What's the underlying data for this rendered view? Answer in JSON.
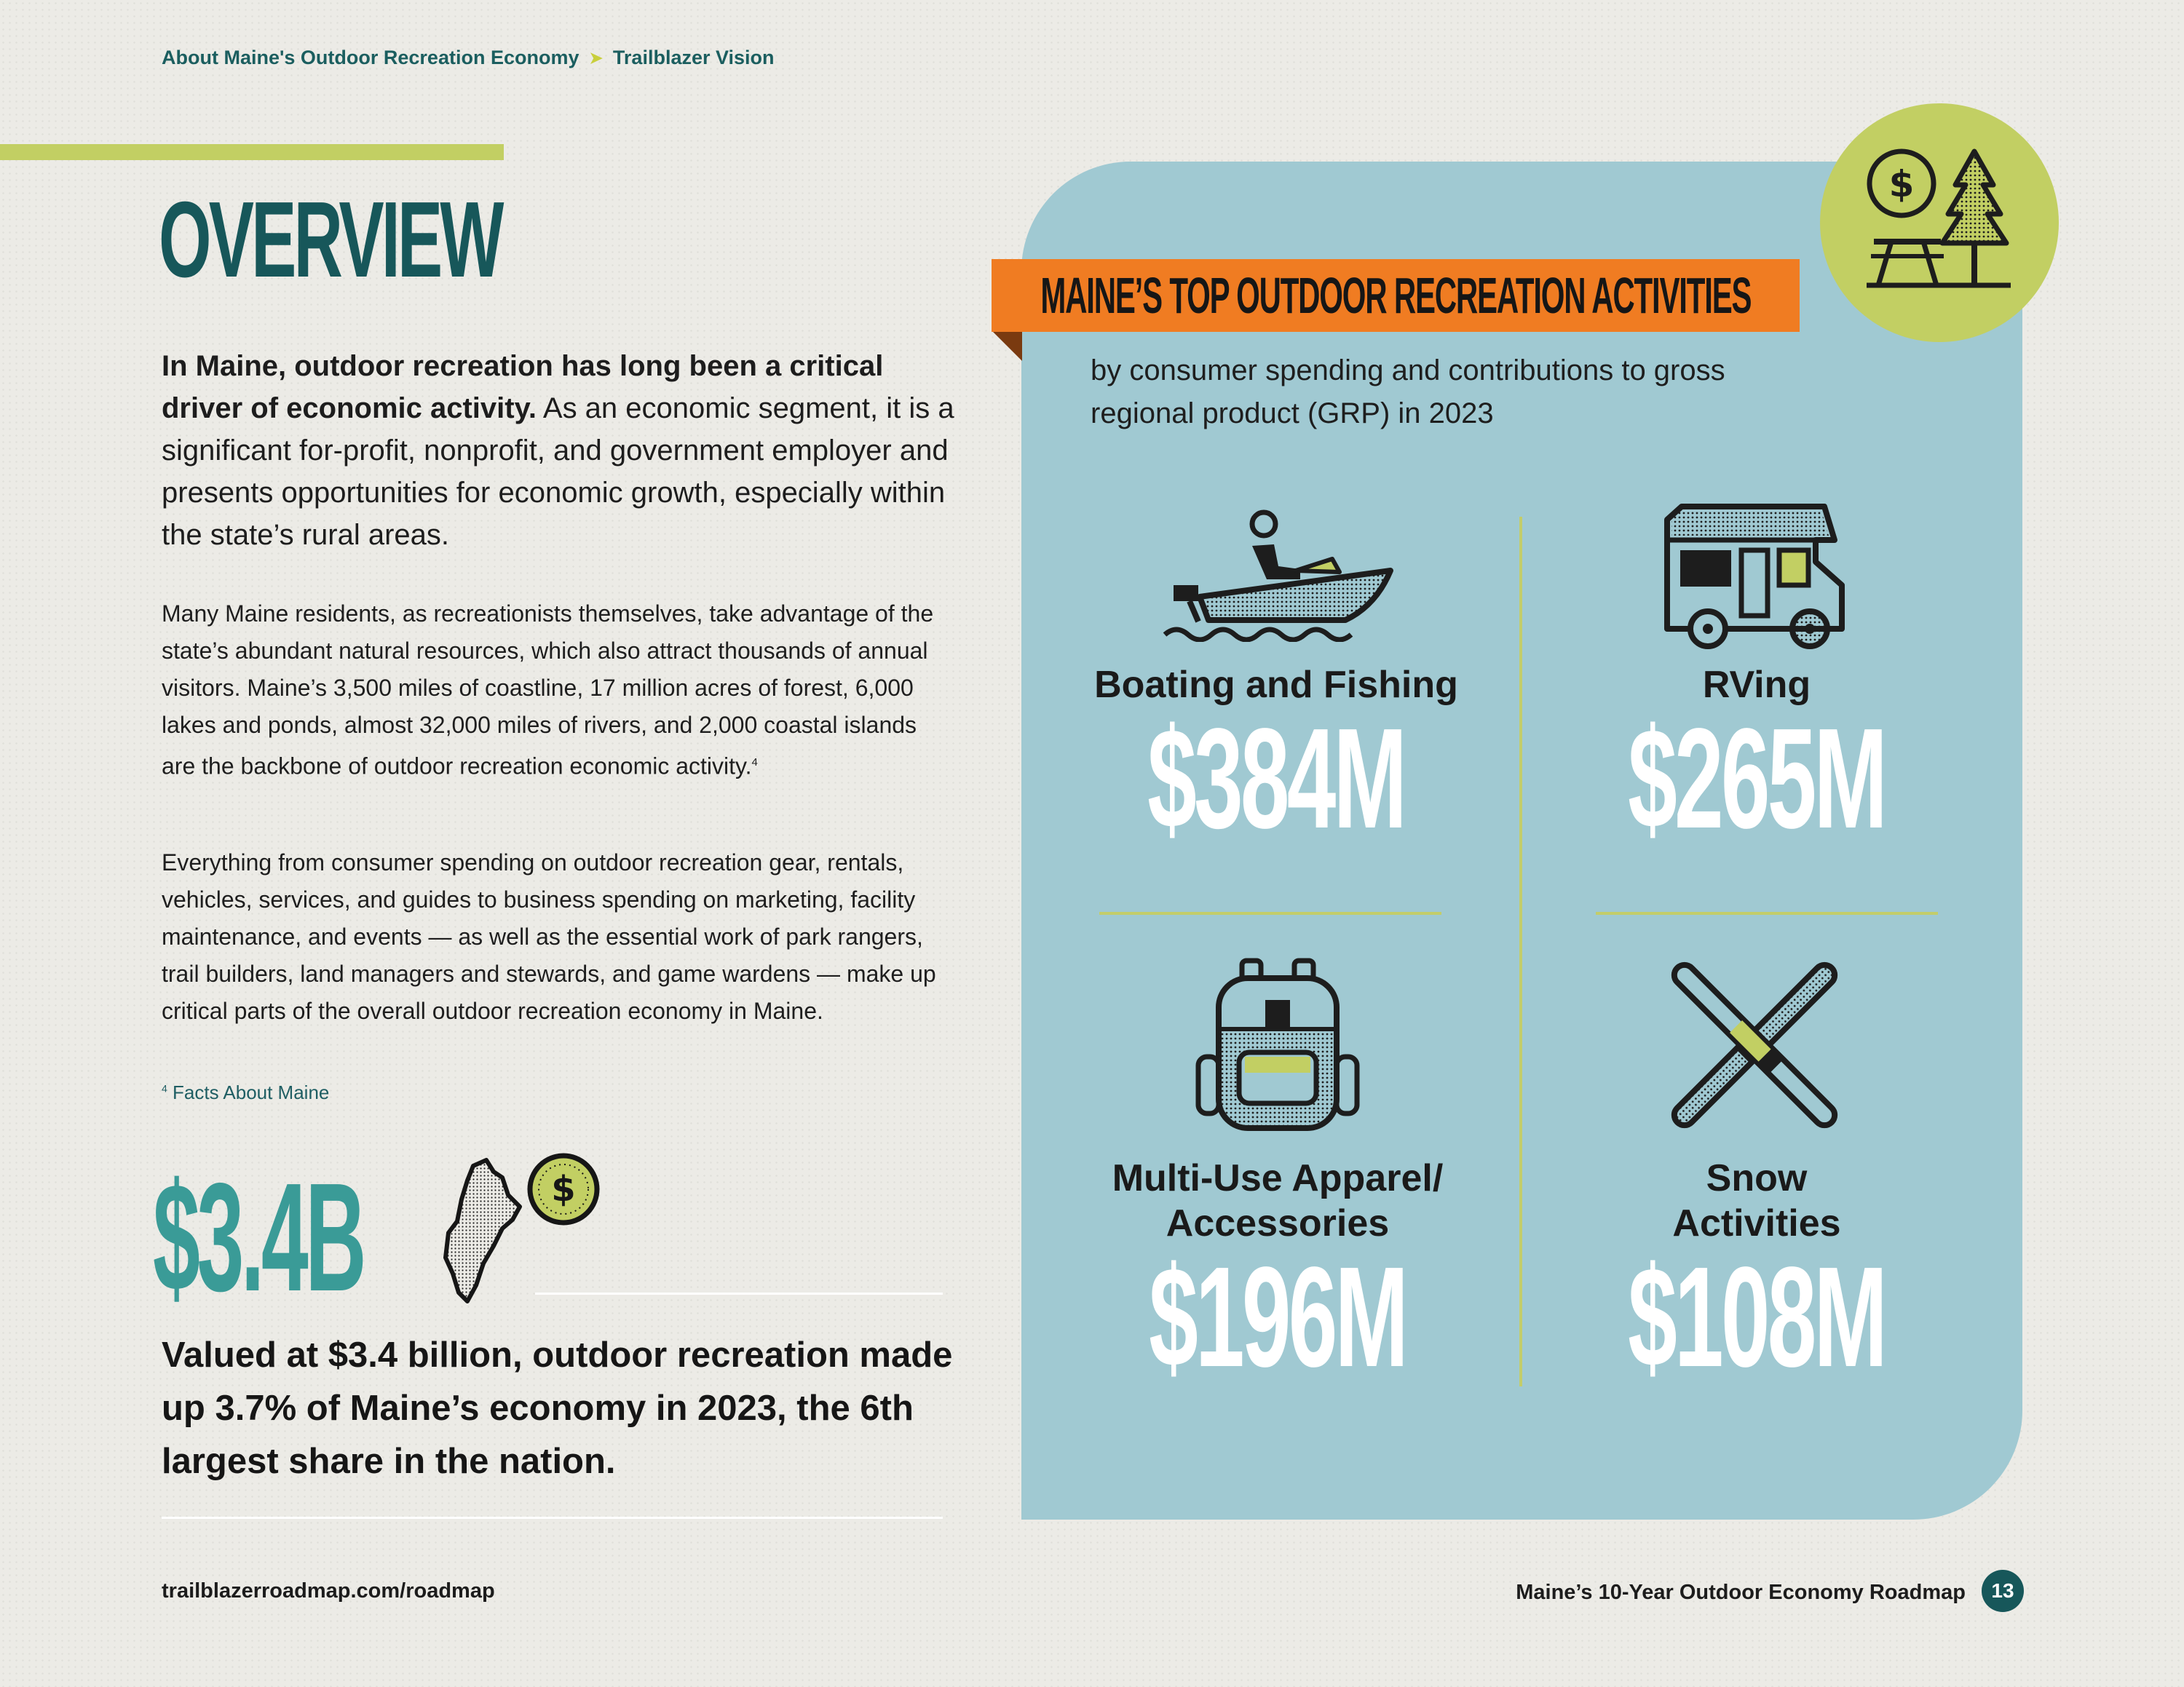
{
  "breadcrumb": {
    "section": "About Maine's Outdoor Recreation Economy",
    "separator": "➤",
    "current": "Trailblazer Vision"
  },
  "title": "OVERVIEW",
  "lead": {
    "bold": "In Maine, outdoor recreation has long been a critical driver of economic activity.",
    "rest": " As an economic segment, it is a significant for-profit, nonprofit, and government employer and presents opportunities for economic growth, especially within the state’s rural areas."
  },
  "paragraph1": {
    "text": "Many Maine residents, as recreationists themselves, take advantage of the state’s abundant natural resources, which also attract thousands of annual visitors. Maine’s 3,500 miles of coastline, 17 million acres of forest, 6,000 lakes and ponds, almost 32,000 miles of rivers, and 2,000 coastal islands are the backbone of outdoor recreation economic activity.",
    "footnote_ref": "4"
  },
  "paragraph2": "Everything from consumer spending on outdoor recreation gear, rentals, vehicles, services, and guides to business spending on marketing, facility maintenance, and events — as well as the essential work of park rangers, trail builders, land managers and stewards, and game wardens — make up critical parts of the overall outdoor recreation economy in Maine.",
  "footnote": {
    "number": "4",
    "text": "Facts About Maine"
  },
  "stat": {
    "value": "$3.4B",
    "description": "Valued at $3.4 billion, outdoor recreation made up 3.7% of Maine’s economy in 2023, the 6th largest share in the nation."
  },
  "panel": {
    "heading": "MAINE’S TOP OUTDOOR RECREATION ACTIVITIES",
    "subtitle": "by consumer spending and contributions to gross regional product (GRP) in 2023",
    "activities": [
      {
        "label": "Boating and Fishing",
        "value": "$384M",
        "icon": "boat-icon"
      },
      {
        "label": "RVing",
        "value": "$265M",
        "icon": "rv-icon"
      },
      {
        "label": "Multi-Use Apparel/ Accessories",
        "value": "$196M",
        "icon": "backpack-icon"
      },
      {
        "label": "Snow Activities",
        "value": "$108M",
        "icon": "skis-icon"
      }
    ]
  },
  "footer": {
    "url": "trailblazerroadmap.com/roadmap",
    "title": "Maine’s 10-Year Outdoor Economy Roadmap",
    "page": "13"
  },
  "colors": {
    "teal_dark": "#17575a",
    "teal": "#3a9b97",
    "orange": "#f07c22",
    "lime": "#c2cf63",
    "panel_blue": "#a0c9d2"
  }
}
